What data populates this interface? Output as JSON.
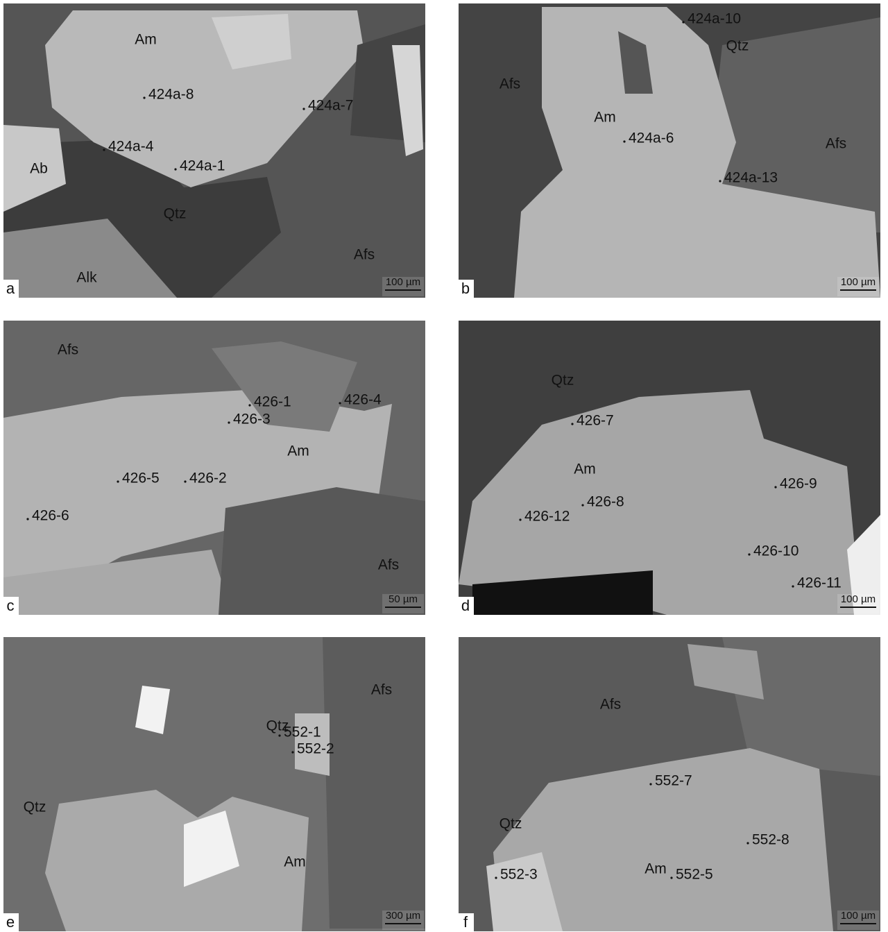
{
  "panels": [
    {
      "letter": "a",
      "scale_bar": "100 µm",
      "minerals": [
        "Am",
        "Ab",
        "Qtz",
        "Afs",
        "Alk"
      ],
      "analysis_points": [
        "424a-8",
        "424a-7",
        "424a-4",
        "424a-1"
      ]
    },
    {
      "letter": "b",
      "scale_bar": "100 µm",
      "minerals": [
        "Qtz",
        "Afs",
        "Am",
        "Afs"
      ],
      "analysis_points": [
        "424a-10",
        "424a-6",
        "424a-13"
      ]
    },
    {
      "letter": "c",
      "scale_bar": "50 µm",
      "minerals": [
        "Afs",
        "Am",
        "Afs"
      ],
      "analysis_points": [
        "426-1",
        "426-4",
        "426-3",
        "426-5",
        "426-2",
        "426-6"
      ]
    },
    {
      "letter": "d",
      "scale_bar": "100 µm",
      "minerals": [
        "Qtz",
        "Am"
      ],
      "analysis_points": [
        "426-7",
        "426-9",
        "426-8",
        "426-12",
        "426-10",
        "426-11"
      ]
    },
    {
      "letter": "e",
      "scale_bar": "300 µm",
      "minerals": [
        "Afs",
        "Qtz",
        "Qtz",
        "Am"
      ],
      "analysis_points": [
        "552-1",
        "552-2"
      ]
    },
    {
      "letter": "f",
      "scale_bar": "100 µm",
      "minerals": [
        "Afs",
        "Qtz",
        "Am"
      ],
      "analysis_points": [
        "552-7",
        "552-8",
        "552-3",
        "552-5"
      ]
    }
  ]
}
